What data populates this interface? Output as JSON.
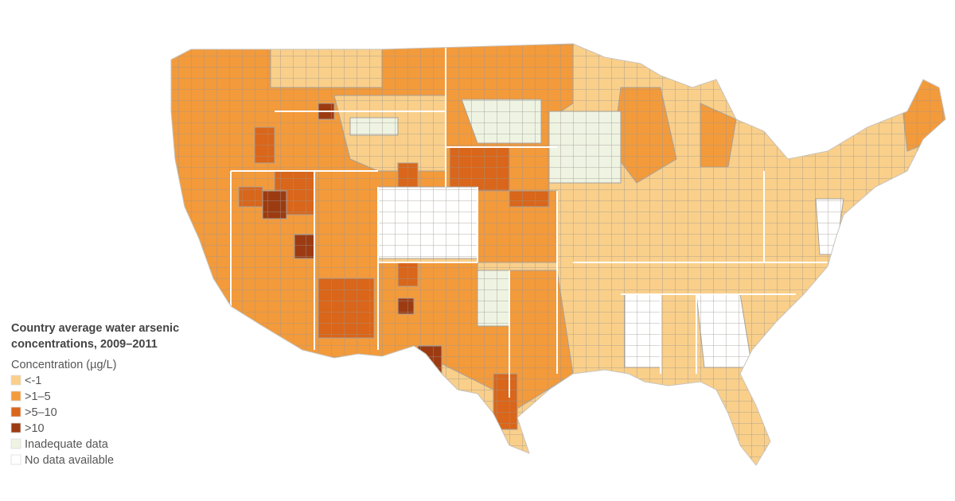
{
  "legend": {
    "title": [
      "Country average water arsenic",
      "concentrations, 2009–2011"
    ],
    "subtitle": "Concentration (µg/L)",
    "items": [
      {
        "label": "<-1",
        "color": "#f9cf8a"
      },
      {
        "label": ">1–5",
        "color": "#f39a3b"
      },
      {
        "label": ">5–10",
        "color": "#d9661a"
      },
      {
        "label": ">10",
        "color": "#9c3b12"
      },
      {
        "label": "Inadequate data",
        "color": "#eef3e2"
      },
      {
        "label": "No data available",
        "color": "#ffffff"
      }
    ]
  }
}
